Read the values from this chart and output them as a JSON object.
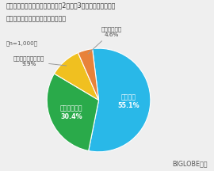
{
  "title_line1": "今後新型コロナウイルス流行の第2波、第3波が発生した場合、",
  "title_line2": "緊急事態宣言の発出をしてほしいか",
  "n_label": "（n=1,000）",
  "source": "BIGLOBE調べ",
  "slices": [
    {
      "label": "そう思う",
      "value": 55.1,
      "color": "#29b8e8"
    },
    {
      "label": "ややそう思う",
      "value": 30.4,
      "color": "#2aaa4a"
    },
    {
      "label": "あまりそう思わない",
      "value": 9.9,
      "color": "#f0c020"
    },
    {
      "label": "そう思わない",
      "value": 4.6,
      "color": "#e8823a"
    }
  ],
  "startangle": 97,
  "background_color": "#efefef",
  "title_fontsize": 5.8,
  "inner_label_fontsize": 5.8,
  "outer_label_fontsize": 5.2,
  "source_fontsize": 5.8
}
